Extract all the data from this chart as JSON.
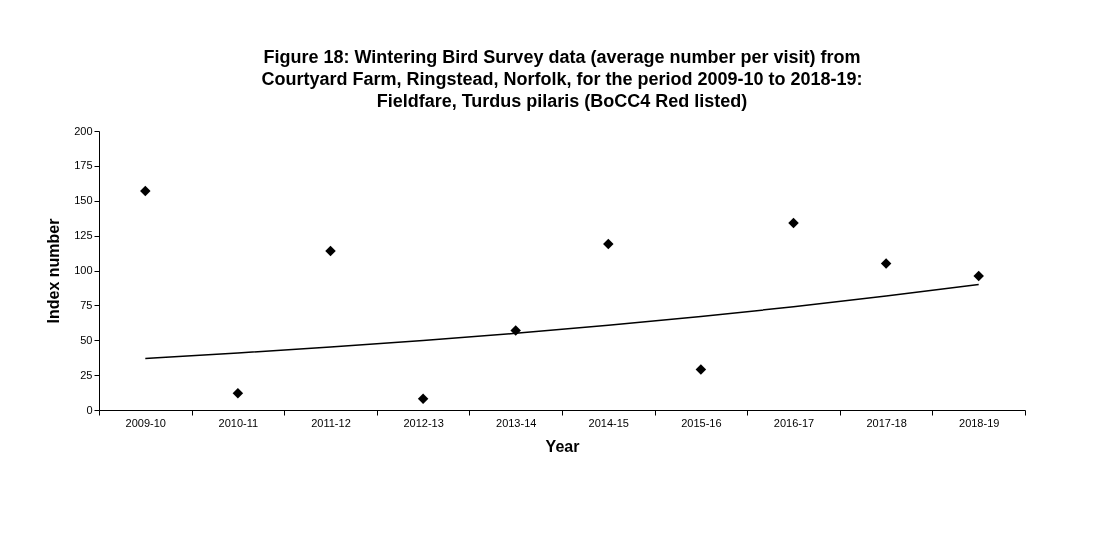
{
  "chart_data": {
    "type": "scatter",
    "title": "Figure 18: Wintering Bird Survey data (average number per visit) from\nCourtyard Farm, Ringstead, Norfolk, for the period 2009-10 to 2018-19:\nFieldfare, Turdus pilaris (BoCC4 Red listed)",
    "xlabel": "Year",
    "ylabel": "Index number",
    "categories": [
      "2009-10",
      "2010-11",
      "2011-12",
      "2012-13",
      "2013-14",
      "2014-15",
      "2015-16",
      "2016-17",
      "2017-18",
      "2018-19"
    ],
    "ylim": [
      0,
      200
    ],
    "yticks": [
      0,
      25,
      50,
      75,
      100,
      125,
      150,
      175,
      200
    ],
    "series": [
      {
        "marker": "diamond",
        "color": "#000000",
        "values": [
          157,
          12,
          114,
          8,
          57,
          119,
          29,
          134,
          105,
          96
        ]
      },
      {
        "type": "line",
        "color": "#000000",
        "values": [
          37,
          40.9,
          45.1,
          49.8,
          55,
          60.7,
          67,
          74,
          81.7,
          90
        ]
      }
    ]
  }
}
